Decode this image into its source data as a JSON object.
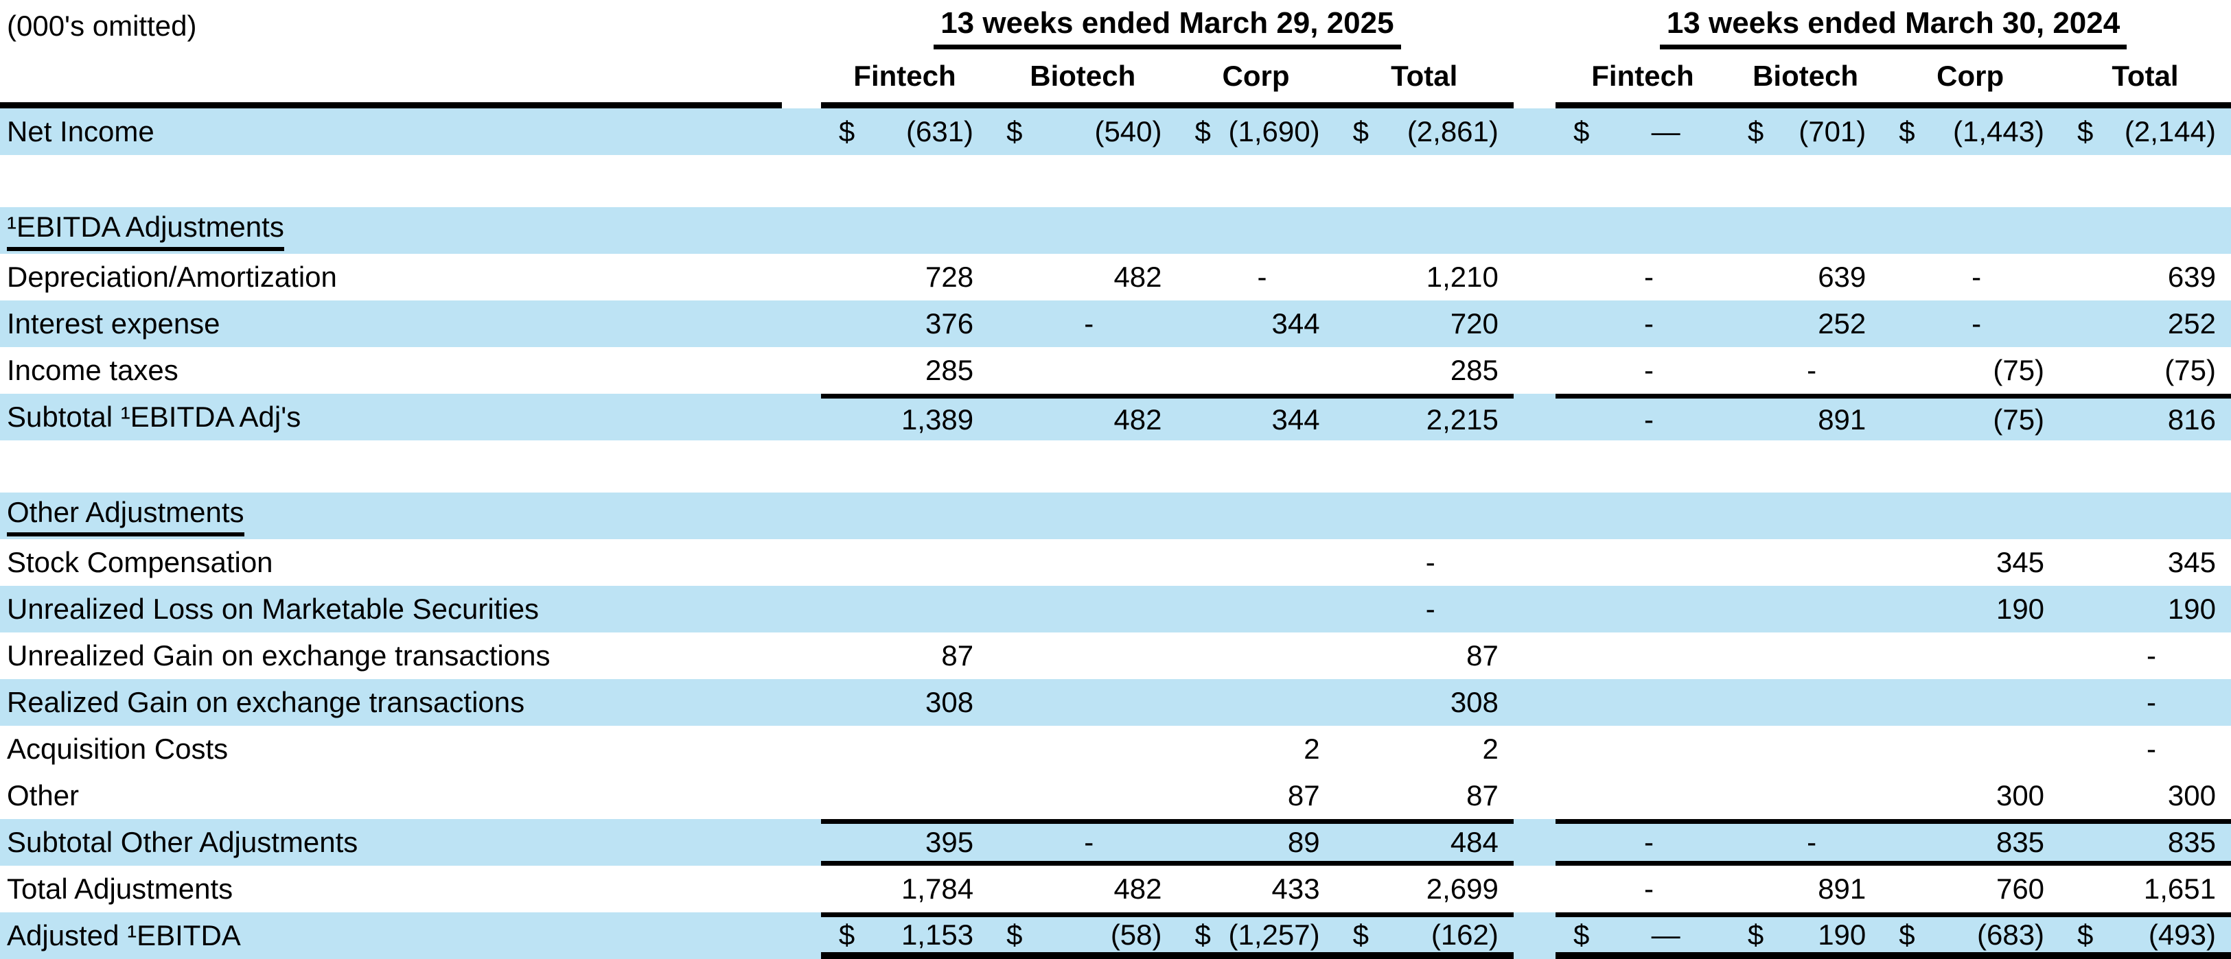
{
  "title_note": "(000's omitted)",
  "colors": {
    "band": "#BDE3F4",
    "line": "#000000"
  },
  "groups": [
    {
      "title": "13 weeks ended March 29, 2025",
      "columns": [
        "Fintech",
        "Biotech",
        "Corp",
        "Total"
      ]
    },
    {
      "title": "13 weeks ended March 30, 2024",
      "columns": [
        "Fintech",
        "Biotech",
        "Corp",
        "Total"
      ]
    }
  ],
  "rows": [
    {
      "label": "Net Income",
      "bg": "band",
      "cells": [
        [
          "$|(631)",
          "$|(540)",
          "$|(1,690)",
          "$|(2,861)"
        ],
        [
          "$|—",
          "$|(701)",
          "$|(1,443)",
          "$|(2,144)"
        ]
      ]
    },
    {
      "label": "",
      "bg": "white",
      "blank": true,
      "cells": [
        [
          "",
          "",
          "",
          ""
        ],
        [
          "",
          "",
          "",
          ""
        ]
      ]
    },
    {
      "label": "¹EBITDA Adjustments",
      "bg": "band",
      "underline": true,
      "cells": [
        [
          "",
          "",
          "",
          ""
        ],
        [
          "",
          "",
          "",
          ""
        ]
      ]
    },
    {
      "label": "Depreciation/Amortization",
      "bg": "white",
      "cells": [
        [
          "728",
          "482",
          "-",
          "1,210"
        ],
        [
          "-",
          "639",
          "-",
          "639"
        ]
      ]
    },
    {
      "label": "Interest expense",
      "bg": "band",
      "cells": [
        [
          "376",
          "-",
          "344",
          "720"
        ],
        [
          "-",
          "252",
          "-",
          "252"
        ]
      ]
    },
    {
      "label": "Income taxes",
      "bg": "white",
      "cells": [
        [
          "285",
          "",
          "",
          "285"
        ],
        [
          "-",
          "-",
          "(75)",
          "(75)"
        ]
      ]
    },
    {
      "label": "Subtotal ¹EBITDA Adj's",
      "bg": "band",
      "line_top": true,
      "cells": [
        [
          "1,389",
          "482",
          "344",
          "2,215"
        ],
        [
          "-",
          "891",
          "(75)",
          "816"
        ]
      ]
    },
    {
      "label": "",
      "bg": "white",
      "blank": true,
      "cells": [
        [
          "",
          "",
          "",
          ""
        ],
        [
          "",
          "",
          "",
          ""
        ]
      ]
    },
    {
      "label": "Other Adjustments",
      "bg": "band",
      "underline": true,
      "cells": [
        [
          "",
          "",
          "",
          ""
        ],
        [
          "",
          "",
          "",
          ""
        ]
      ]
    },
    {
      "label": "Stock Compensation",
      "bg": "white",
      "cells": [
        [
          "",
          "",
          "",
          "-"
        ],
        [
          "",
          "",
          "345",
          "345"
        ]
      ]
    },
    {
      "label": "Unrealized Loss on Marketable Securities",
      "bg": "band",
      "cells": [
        [
          "",
          "",
          "",
          "-"
        ],
        [
          "",
          "",
          "190",
          "190"
        ]
      ]
    },
    {
      "label": "Unrealized Gain on exchange transactions",
      "bg": "white",
      "cells": [
        [
          "87",
          "",
          "",
          "87"
        ],
        [
          "",
          "",
          "",
          "-"
        ]
      ]
    },
    {
      "label": "Realized Gain on exchange transactions",
      "bg": "band",
      "cells": [
        [
          "308",
          "",
          "",
          "308"
        ],
        [
          "",
          "",
          "",
          "-"
        ]
      ]
    },
    {
      "label": "Acquisition Costs",
      "bg": "white",
      "cells": [
        [
          "",
          "",
          "2",
          "2"
        ],
        [
          "",
          "",
          "",
          "-"
        ]
      ]
    },
    {
      "label": "Other",
      "bg": "white",
      "cells": [
        [
          "",
          "",
          "87",
          "87"
        ],
        [
          "",
          "",
          "300",
          "300"
        ]
      ]
    },
    {
      "label": "Subtotal Other Adjustments",
      "bg": "band",
      "line_top": true,
      "line_bottom": "thin",
      "cells": [
        [
          "395",
          "-",
          "89",
          "484"
        ],
        [
          "-",
          "-",
          "835",
          "835"
        ]
      ]
    },
    {
      "label": "Total Adjustments",
      "bg": "white",
      "cells": [
        [
          "1,784",
          "482",
          "433",
          "2,699"
        ],
        [
          "-",
          "891",
          "760",
          "1,651"
        ]
      ]
    },
    {
      "label": "Adjusted ¹EBITDA",
      "bg": "band",
      "line_top": true,
      "line_bottom": "thick",
      "cells": [
        [
          "$|1,153",
          "$|(58)",
          "$|(1,257)",
          "$|(162)"
        ],
        [
          "$|—",
          "$|190",
          "$|(683)",
          "$|(493)"
        ]
      ]
    }
  ]
}
